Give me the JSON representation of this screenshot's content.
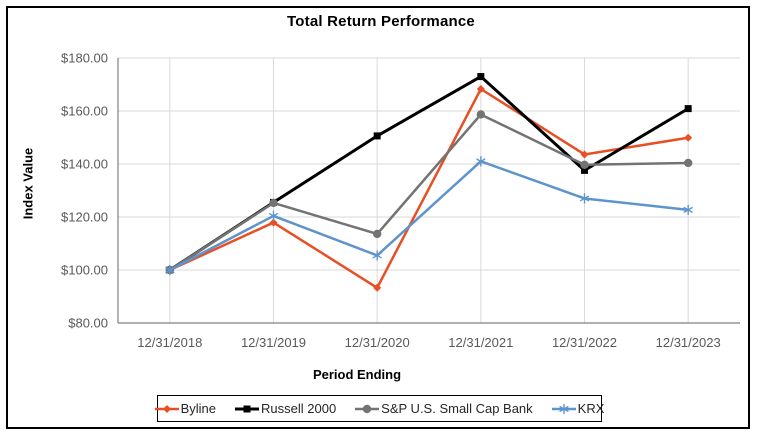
{
  "chart_data": {
    "type": "line",
    "title": "Total Return Performance",
    "xlabel": "Period Ending",
    "ylabel": "Index Value",
    "categories": [
      "12/31/2018",
      "12/31/2019",
      "12/31/2020",
      "12/31/2021",
      "12/31/2022",
      "12/31/2023"
    ],
    "series": [
      {
        "name": "Byline",
        "color": "#E74F24",
        "marker": "diamond",
        "values": [
          100.0,
          117.9,
          93.3,
          168.3,
          143.6,
          149.9
        ]
      },
      {
        "name": "Russell 2000",
        "color": "#000000",
        "marker": "square",
        "values": [
          100.0,
          125.5,
          150.6,
          173.0,
          137.6,
          160.9
        ]
      },
      {
        "name": "S&P U.S. Small Cap Bank",
        "color": "#737373",
        "marker": "circle",
        "values": [
          100.0,
          125.3,
          113.6,
          158.7,
          139.7,
          140.4
        ]
      },
      {
        "name": "KRX",
        "color": "#5E94CC",
        "marker": "asterisk",
        "values": [
          100.0,
          120.4,
          105.5,
          141.0,
          127.0,
          122.7
        ]
      }
    ],
    "ylim": [
      80,
      180
    ],
    "yticks": {
      "values": [
        180,
        160,
        140,
        120,
        100,
        80
      ],
      "labels": [
        "$180.00",
        "$160.00",
        "$140.00",
        "$120.00",
        "$100.00",
        "$80.00"
      ]
    },
    "grid": true,
    "legend_position": "bottom",
    "colors": {
      "gridline": "#D9D9D9",
      "axis": "#808080",
      "tick_text": "#595959",
      "frame_border": "#000000"
    }
  }
}
